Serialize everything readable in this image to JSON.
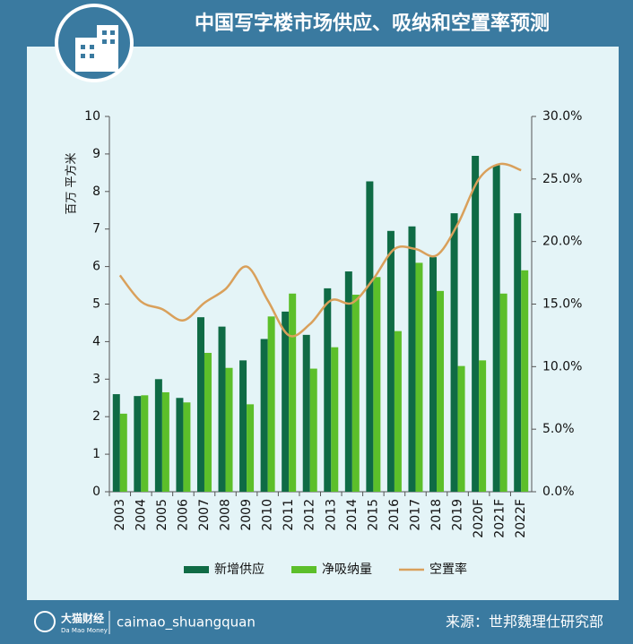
{
  "chart_data": {
    "type": "bar_line",
    "title": "中国写字楼市场供应、吸纳和空置率预测",
    "y_label": "百万 平方米",
    "categories": [
      "2003",
      "2004",
      "2005",
      "2006",
      "2007",
      "2008",
      "2009",
      "2010",
      "2011",
      "2012",
      "2013",
      "2014",
      "2015",
      "2016",
      "2017",
      "2018",
      "2019",
      "2020F",
      "2021F",
      "2022F"
    ],
    "series": [
      {
        "name": "新增供应",
        "type": "bar",
        "color": "#0f6b45",
        "values": [
          2.6,
          2.55,
          3.0,
          2.5,
          4.65,
          4.4,
          3.5,
          4.07,
          4.8,
          4.18,
          5.42,
          5.87,
          8.27,
          6.95,
          7.07,
          6.25,
          7.42,
          8.95,
          8.7,
          7.42
        ]
      },
      {
        "name": "净吸纳量",
        "type": "bar",
        "color": "#5cbf2a",
        "values": [
          2.08,
          2.57,
          2.65,
          2.38,
          3.7,
          3.3,
          2.33,
          4.67,
          5.28,
          3.28,
          3.85,
          5.25,
          5.72,
          4.28,
          6.1,
          5.35,
          3.35,
          3.5,
          5.28,
          5.9
        ]
      },
      {
        "name": "空置率",
        "type": "line",
        "axis": "y2",
        "color": "#d9a05b",
        "values": [
          17.3,
          15.2,
          14.6,
          13.7,
          15.1,
          16.2,
          18.0,
          15.3,
          12.5,
          13.4,
          15.3,
          15.1,
          17.0,
          19.4,
          19.4,
          18.9,
          21.4,
          25.0,
          26.2,
          25.7
        ]
      }
    ],
    "ylim": [
      0,
      10
    ],
    "yticks": [
      0,
      1,
      2,
      3,
      4,
      5,
      6,
      7,
      8,
      9,
      10
    ],
    "y2lim": [
      0,
      30
    ],
    "y2ticks": [
      {
        "value": 0,
        "label": "0.0%"
      },
      {
        "value": 5,
        "label": "5.0%"
      },
      {
        "value": 10,
        "label": "10.0%"
      },
      {
        "value": 15,
        "label": "15.0%"
      },
      {
        "value": 20,
        "label": "20.0%"
      },
      {
        "value": 25,
        "label": "25.0%"
      },
      {
        "value": 30,
        "label": "30.0%"
      }
    ],
    "legend": "bottom"
  },
  "footer": {
    "brand": "大猫财经",
    "brand_en": "Da Mao Money",
    "handle": "caimao_shuangquan",
    "source": "来源：世邦魏理仕研究部"
  }
}
